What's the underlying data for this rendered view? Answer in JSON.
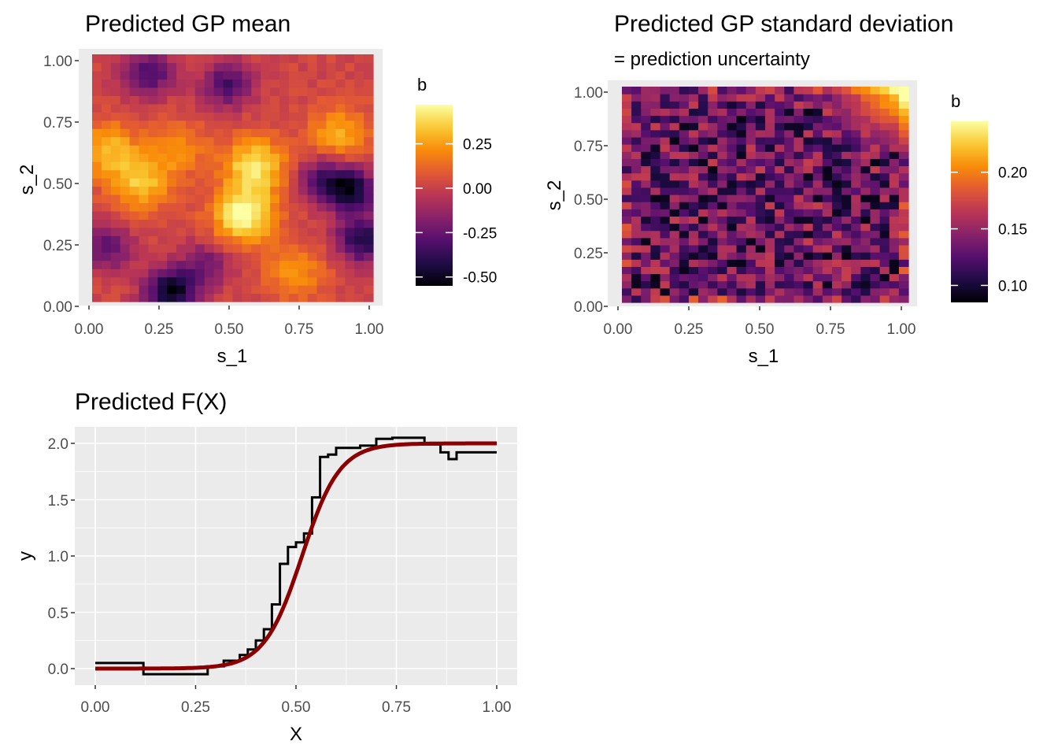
{
  "chart_data": [
    {
      "type": "heatmap",
      "title": "Predicted GP mean",
      "xlabel": "s_1",
      "ylabel": "s_2",
      "xlim": [
        0,
        1
      ],
      "ylim": [
        0,
        1
      ],
      "x_ticks": [
        "0.00",
        "0.25",
        "0.50",
        "0.75",
        "1.00"
      ],
      "y_ticks": [
        "0.00",
        "0.25",
        "0.50",
        "0.75",
        "1.00"
      ],
      "colorscale": "inferno",
      "legend": {
        "title": "b",
        "position": "right",
        "range": [
          -0.55,
          0.47
        ],
        "ticks": [
          -0.5,
          -0.25,
          0.0,
          0.25
        ],
        "tick_labels": [
          "-0.50",
          "-0.25",
          "0.00",
          "0.25"
        ]
      },
      "grid_size": [
        30,
        30
      ],
      "peaks": [
        {
          "x": 0.54,
          "y": 0.35,
          "value": 0.47
        },
        {
          "x": 0.58,
          "y": 0.55,
          "value": 0.4
        },
        {
          "x": 0.05,
          "y": 0.62,
          "value": 0.28
        },
        {
          "x": 0.17,
          "y": 0.48,
          "value": 0.3
        },
        {
          "x": 0.88,
          "y": 0.68,
          "value": 0.25
        },
        {
          "x": 0.72,
          "y": 0.12,
          "value": 0.2
        },
        {
          "x": 0.3,
          "y": 0.62,
          "value": 0.18
        }
      ],
      "troughs": [
        {
          "x": 0.28,
          "y": 0.04,
          "value": -0.55
        },
        {
          "x": 0.92,
          "y": 0.45,
          "value": -0.5
        },
        {
          "x": 0.96,
          "y": 0.25,
          "value": -0.45
        },
        {
          "x": 0.2,
          "y": 0.92,
          "value": -0.35
        },
        {
          "x": 0.48,
          "y": 0.88,
          "value": -0.35
        },
        {
          "x": 0.05,
          "y": 0.22,
          "value": -0.3
        },
        {
          "x": 0.82,
          "y": 0.5,
          "value": -0.3
        },
        {
          "x": 0.4,
          "y": 0.15,
          "value": -0.25
        }
      ]
    },
    {
      "type": "heatmap",
      "title": "Predicted GP standard deviation",
      "subtitle": " = prediction uncertainty",
      "xlabel": "s_1",
      "ylabel": "s_2",
      "xlim": [
        0,
        1
      ],
      "ylim": [
        0,
        1
      ],
      "x_ticks": [
        "0.00",
        "0.25",
        "0.50",
        "0.75",
        "1.00"
      ],
      "y_ticks": [
        "0.00",
        "0.25",
        "0.50",
        "0.75",
        "1.00"
      ],
      "colorscale": "inferno",
      "legend": {
        "title": "b",
        "position": "right",
        "range": [
          0.085,
          0.245
        ],
        "ticks": [
          0.1,
          0.15,
          0.2
        ],
        "tick_labels": [
          "0.10",
          "0.15",
          "0.20"
        ]
      },
      "grid_size": [
        30,
        30
      ],
      "base_value": 0.13,
      "noise_amplitude": 0.04,
      "corner_high": {
        "x": 1.0,
        "y": 1.0,
        "value": 0.245
      }
    },
    {
      "type": "line",
      "title": "Predicted F(X)",
      "xlabel": "X",
      "ylabel": "y",
      "xlim": [
        0,
        1
      ],
      "ylim": [
        -0.15,
        2.15
      ],
      "x_ticks": [
        "0.00",
        "0.25",
        "0.50",
        "0.75",
        "1.00"
      ],
      "y_ticks": [
        "0.0",
        "0.5",
        "1.0",
        "1.5",
        "2.0"
      ],
      "grid": true,
      "series": [
        {
          "color": "#000000",
          "style": "step",
          "points": [
            [
              0.0,
              0.05
            ],
            [
              0.12,
              0.05
            ],
            [
              0.12,
              -0.05
            ],
            [
              0.28,
              -0.05
            ],
            [
              0.28,
              0.02
            ],
            [
              0.32,
              0.02
            ],
            [
              0.32,
              0.07
            ],
            [
              0.36,
              0.07
            ],
            [
              0.36,
              0.12
            ],
            [
              0.38,
              0.12
            ],
            [
              0.38,
              0.17
            ],
            [
              0.4,
              0.17
            ],
            [
              0.4,
              0.25
            ],
            [
              0.42,
              0.25
            ],
            [
              0.42,
              0.35
            ],
            [
              0.44,
              0.35
            ],
            [
              0.44,
              0.57
            ],
            [
              0.46,
              0.57
            ],
            [
              0.46,
              0.93
            ],
            [
              0.48,
              0.93
            ],
            [
              0.48,
              1.08
            ],
            [
              0.5,
              1.08
            ],
            [
              0.5,
              1.12
            ],
            [
              0.52,
              1.12
            ],
            [
              0.52,
              1.2
            ],
            [
              0.54,
              1.2
            ],
            [
              0.54,
              1.52
            ],
            [
              0.56,
              1.52
            ],
            [
              0.56,
              1.88
            ],
            [
              0.58,
              1.88
            ],
            [
              0.58,
              1.9
            ],
            [
              0.6,
              1.9
            ],
            [
              0.6,
              1.96
            ],
            [
              0.66,
              1.96
            ],
            [
              0.66,
              1.98
            ],
            [
              0.7,
              1.98
            ],
            [
              0.7,
              2.04
            ],
            [
              0.74,
              2.04
            ],
            [
              0.74,
              2.05
            ],
            [
              0.82,
              2.05
            ],
            [
              0.82,
              1.99
            ],
            [
              0.86,
              1.99
            ],
            [
              0.86,
              1.92
            ],
            [
              0.88,
              1.92
            ],
            [
              0.88,
              1.86
            ],
            [
              0.9,
              1.86
            ],
            [
              0.9,
              1.92
            ],
            [
              1.0,
              1.92
            ]
          ]
        },
        {
          "color": "#8b0000",
          "style": "smooth",
          "function": "2/(1+exp(-(x-0.515)/0.047))",
          "x_range": [
            0,
            1
          ]
        }
      ]
    }
  ]
}
